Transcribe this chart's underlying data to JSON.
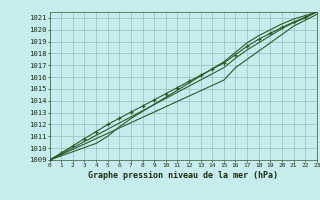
{
  "title": "Graphe pression niveau de la mer (hPa)",
  "background_color": "#c6ecee",
  "plot_bg_color": "#c6ecee",
  "grid_color": "#9bbfbf",
  "line_color": "#2d5a27",
  "x_values": [
    0,
    1,
    2,
    3,
    4,
    5,
    6,
    7,
    8,
    9,
    10,
    11,
    12,
    13,
    14,
    15,
    16,
    17,
    18,
    19,
    20,
    21,
    22,
    23
  ],
  "line1": [
    1009.0,
    1009.45,
    1009.9,
    1010.35,
    1010.8,
    1011.25,
    1011.7,
    1012.15,
    1012.6,
    1013.05,
    1013.5,
    1013.95,
    1014.4,
    1014.85,
    1015.3,
    1015.75,
    1016.8,
    1017.5,
    1018.2,
    1018.9,
    1019.6,
    1020.3,
    1020.8,
    1021.3
  ],
  "line2": [
    1009.0,
    1009.52,
    1010.04,
    1010.56,
    1011.08,
    1011.6,
    1012.12,
    1012.64,
    1013.16,
    1013.68,
    1014.2,
    1014.72,
    1015.24,
    1015.76,
    1016.28,
    1016.8,
    1017.6,
    1018.3,
    1018.9,
    1019.5,
    1020.1,
    1020.6,
    1021.0,
    1021.5
  ],
  "line3": [
    1009.0,
    1009.6,
    1010.2,
    1010.8,
    1011.4,
    1012.0,
    1012.52,
    1013.04,
    1013.56,
    1014.08,
    1014.6,
    1015.12,
    1015.64,
    1016.16,
    1016.68,
    1017.2,
    1017.9,
    1018.6,
    1019.2,
    1019.7,
    1020.2,
    1020.65,
    1021.05,
    1021.55
  ],
  "line4": [
    1009.0,
    1009.35,
    1009.7,
    1010.05,
    1010.4,
    1011.0,
    1011.8,
    1012.5,
    1013.1,
    1013.7,
    1014.3,
    1014.9,
    1015.5,
    1016.1,
    1016.7,
    1017.3,
    1018.1,
    1018.9,
    1019.5,
    1020.0,
    1020.5,
    1020.9,
    1021.2,
    1021.5
  ],
  "markers_line": [
    1009.0,
    1009.6,
    1010.2,
    1010.8,
    1011.4,
    1012.0,
    1012.52,
    1013.04,
    1013.56,
    1014.08,
    1014.6,
    1015.12,
    1015.64,
    1016.16,
    1016.68,
    1017.2,
    1017.9,
    1018.6,
    1019.2,
    1019.7,
    1020.2,
    1020.65,
    1021.05,
    1021.55
  ],
  "ylim_min": 1009,
  "ylim_max": 1021.5,
  "xlim_min": 0,
  "xlim_max": 23,
  "yticks": [
    1009,
    1010,
    1011,
    1012,
    1013,
    1014,
    1015,
    1016,
    1017,
    1018,
    1019,
    1020,
    1021
  ],
  "xticks": [
    0,
    1,
    2,
    3,
    4,
    5,
    6,
    7,
    8,
    9,
    10,
    11,
    12,
    13,
    14,
    15,
    16,
    17,
    18,
    19,
    20,
    21,
    22,
    23
  ]
}
